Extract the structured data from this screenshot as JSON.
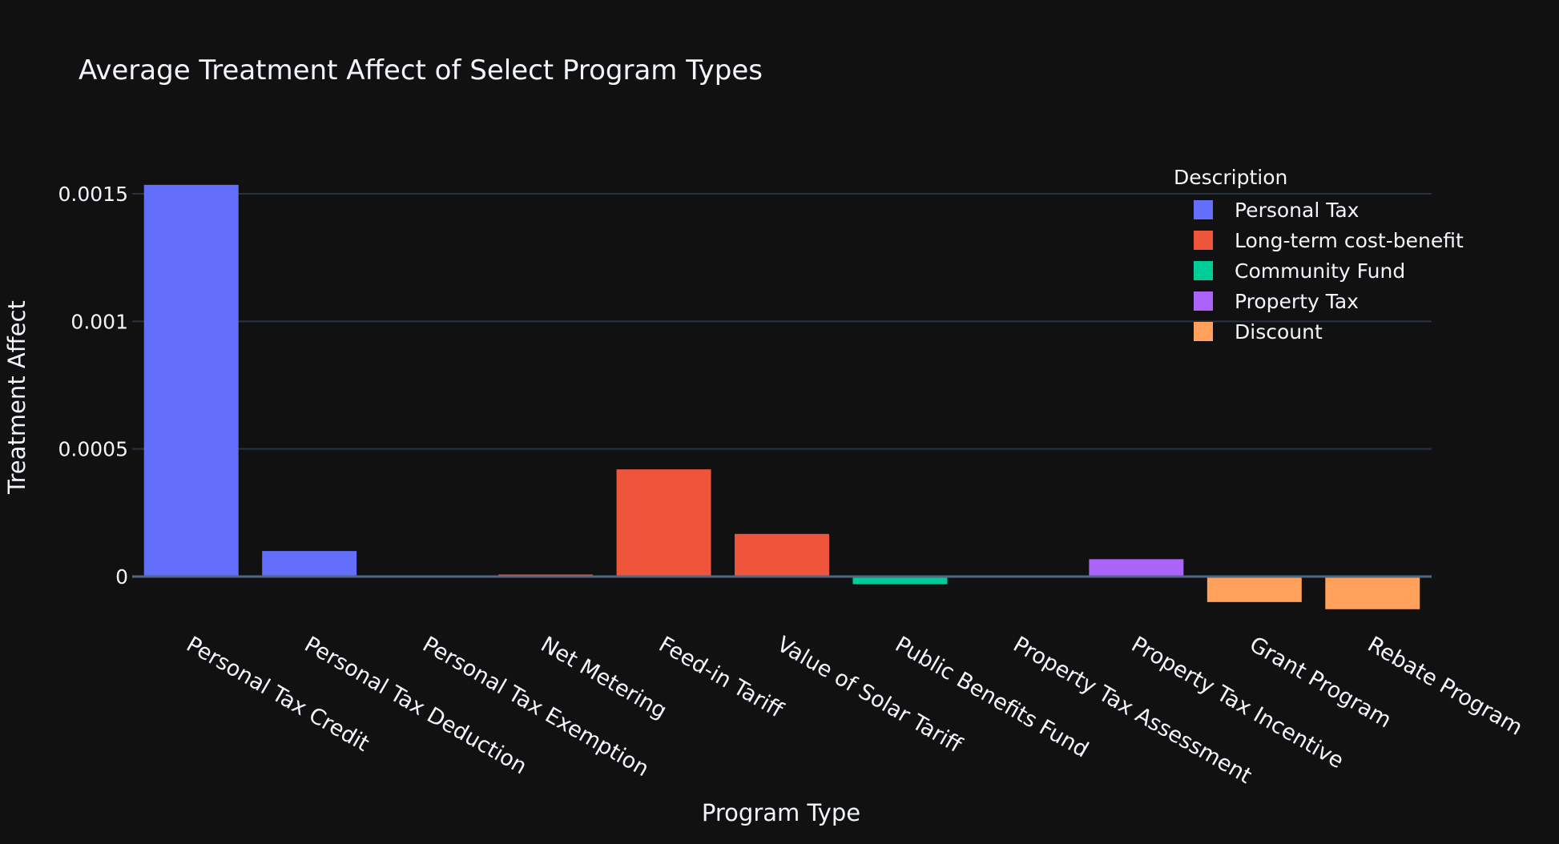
{
  "chart_data": {
    "type": "bar",
    "title": "Average Treatment Affect of Select Program Types",
    "xlabel": "Program Type",
    "ylabel": "Treatment Affect",
    "ylim": [
      -0.00015,
      0.0016
    ],
    "yticks": [
      {
        "value": 0,
        "label": "0"
      },
      {
        "value": 0.0005,
        "label": "0.0005"
      },
      {
        "value": 0.001,
        "label": "0.001"
      },
      {
        "value": 0.0015,
        "label": "0.0015"
      }
    ],
    "grid": true,
    "legend_title": "Description",
    "legend_position": "top-right",
    "categories": [
      "Personal Tax Credit",
      "Personal Tax Deduction",
      "Personal Tax Exemption",
      "Net Metering",
      "Feed-in Tariff",
      "Value of Solar Tariff",
      "Public Benefits Fund",
      "Property Tax Assessment",
      "Property Tax Incentive",
      "Grant Program",
      "Rebate Program"
    ],
    "series": [
      {
        "name": "Personal Tax",
        "color": "#636efa",
        "values": [
          0.001535,
          0.0001,
          5e-07,
          null,
          null,
          null,
          null,
          null,
          null,
          null,
          null
        ]
      },
      {
        "name": "Long-term cost-benefit",
        "color": "#ef553b",
        "values": [
          null,
          null,
          null,
          8e-06,
          0.00042,
          0.000167,
          null,
          null,
          null,
          null,
          null
        ]
      },
      {
        "name": "Community Fund",
        "color": "#00cc96",
        "values": [
          null,
          null,
          null,
          null,
          null,
          null,
          -3e-05,
          null,
          null,
          null,
          null
        ]
      },
      {
        "name": "Property Tax",
        "color": "#ab63fa",
        "values": [
          null,
          null,
          null,
          null,
          null,
          null,
          null,
          5e-07,
          6.8e-05,
          null,
          null
        ]
      },
      {
        "name": "Discount",
        "color": "#ffa15a",
        "values": [
          null,
          null,
          null,
          null,
          null,
          null,
          null,
          null,
          null,
          -0.0001,
          -0.000128
        ]
      }
    ]
  }
}
